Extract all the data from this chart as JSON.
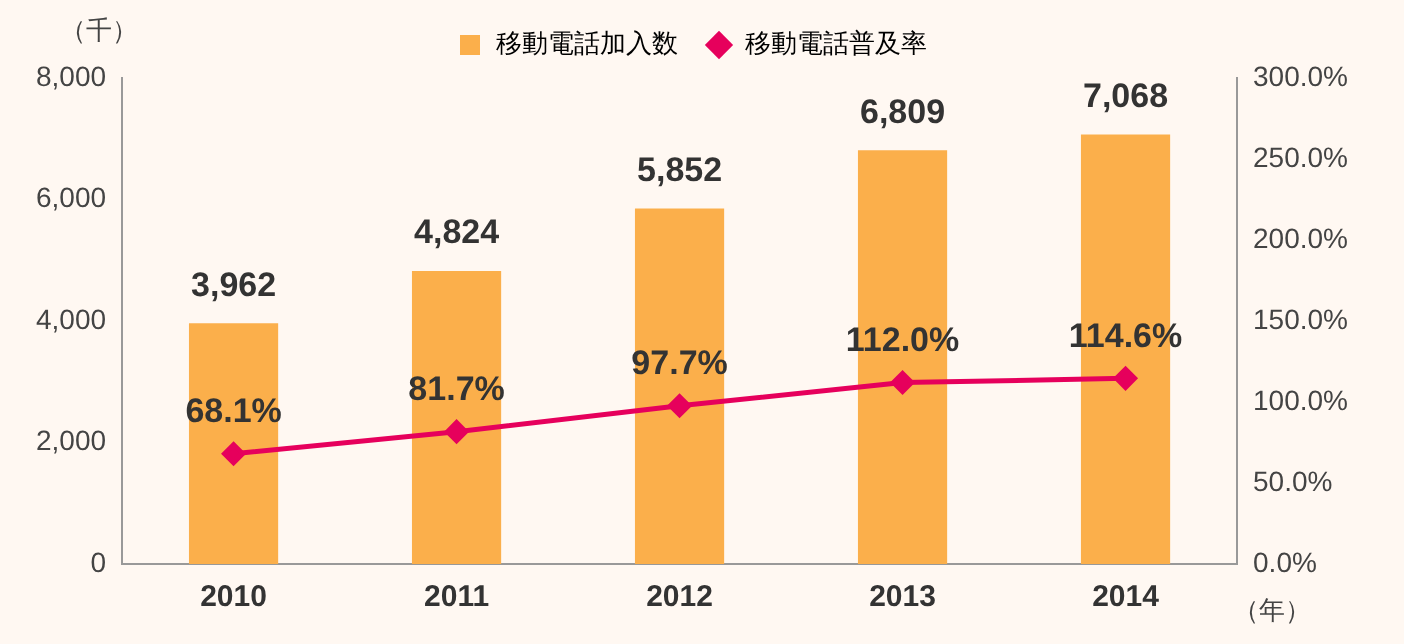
{
  "chart_data": {
    "type": "bar",
    "ylabel": "（千）",
    "xlabel": "（年）",
    "categories": [
      "2010",
      "2011",
      "2012",
      "2013",
      "2014"
    ],
    "series": [
      {
        "name": "移動電話加入数",
        "color": "#fbaf4b",
        "values": [
          3962,
          4824,
          5852,
          6809,
          7068
        ],
        "value_labels": [
          "3,962",
          "4,824",
          "5,852",
          "6,809",
          "7,068"
        ]
      },
      {
        "name": "移動電話普及率",
        "type": "line",
        "axis": "y2",
        "color": "#e6005c",
        "marker": "diamond",
        "values": [
          68.1,
          81.7,
          97.7,
          112.0,
          114.6
        ],
        "value_labels": [
          "68.1%",
          "81.7%",
          "97.7%",
          "112.0%",
          "114.6%"
        ]
      }
    ],
    "ylim": [
      0,
      8000
    ],
    "yticks": [
      {
        "value": 0,
        "label": "0"
      },
      {
        "value": 2000,
        "label": "2,000"
      },
      {
        "value": 4000,
        "label": "4,000"
      },
      {
        "value": 6000,
        "label": "6,000"
      },
      {
        "value": 8000,
        "label": "8,000"
      }
    ],
    "y2lim": [
      0,
      300
    ],
    "y2ticks": [
      {
        "value": 0,
        "label": "0.0%"
      },
      {
        "value": 50,
        "label": "50.0%"
      },
      {
        "value": 100,
        "label": "100.0%"
      },
      {
        "value": 150,
        "label": "150.0%"
      },
      {
        "value": 200,
        "label": "200.0%"
      },
      {
        "value": 250,
        "label": "250.0%"
      },
      {
        "value": 300,
        "label": "300.0%"
      }
    ],
    "grid": false,
    "legend": "top"
  }
}
